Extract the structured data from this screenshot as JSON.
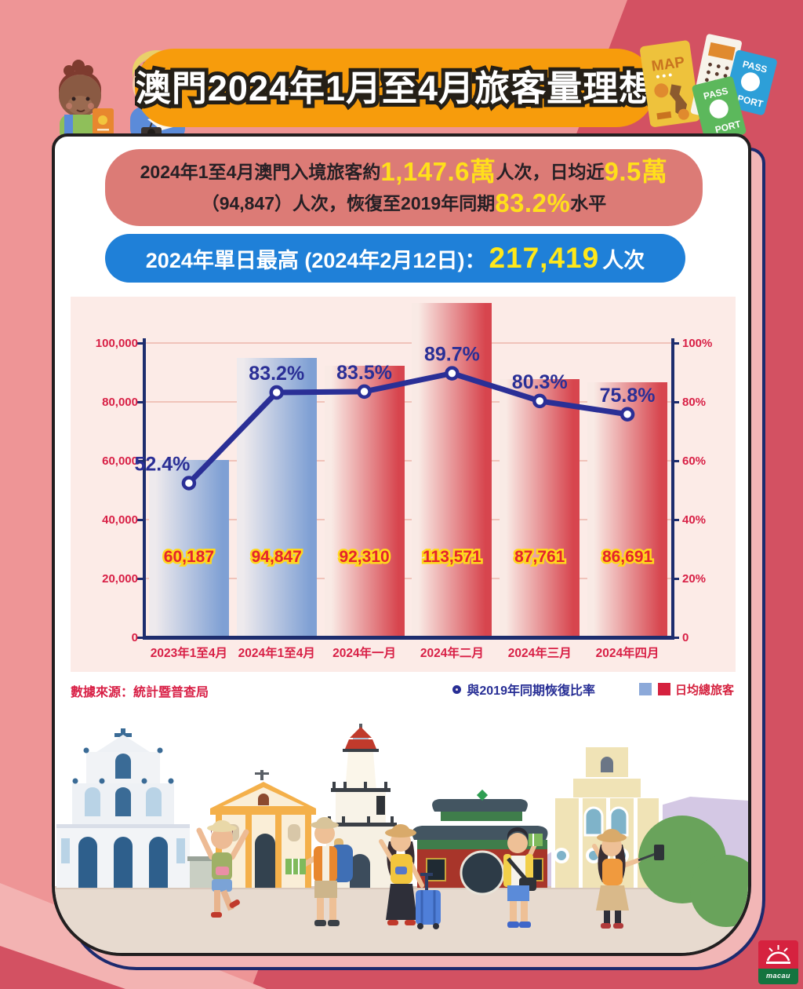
{
  "title": "澳門2024年1月至4月旅客量理想",
  "summary": {
    "line1": [
      {
        "t": "2024年1至4月澳門入境旅客約",
        "hl": false
      },
      {
        "t": "1,147.6萬",
        "hl": true
      },
      {
        "t": "人次，日均近",
        "hl": false
      },
      {
        "t": "9.5萬",
        "hl": true
      }
    ],
    "line2": [
      {
        "t": "（94,847）人次，恢復至2019年同期",
        "hl": false
      },
      {
        "t": "83.2%",
        "hl": true
      },
      {
        "t": "水平",
        "hl": false
      }
    ]
  },
  "highlight_pill": {
    "prefix": "2024年單日最高 (2024年2月12日)：",
    "number": "217,419",
    "suffix": "人次"
  },
  "chart_data": {
    "type": "bar",
    "title": "",
    "categories": [
      "2023年1至4月",
      "2024年1至4月",
      "2024年一月",
      "2024年二月",
      "2024年三月",
      "2024年四月"
    ],
    "series": [
      {
        "name": "日均總旅客",
        "kind": "bar",
        "values": [
          60187,
          94847,
          92310,
          113571,
          87761,
          86691
        ],
        "value_labels": [
          "60,187",
          "94,847",
          "92,310",
          "113,571",
          "87,761",
          "86,691"
        ],
        "bar_palette": [
          "blue",
          "blue",
          "red",
          "red",
          "red",
          "red"
        ]
      },
      {
        "name": "與2019年同期恢復比率",
        "kind": "line",
        "axis": "right",
        "values_percent": [
          52.4,
          83.2,
          83.5,
          89.7,
          80.3,
          75.8
        ],
        "point_labels": [
          "52.4%",
          "83.2%",
          "83.5%",
          "89.7%",
          "80.3%",
          "75.8%"
        ]
      }
    ],
    "left_axis": {
      "max": 100000,
      "ticks": [
        "100,000",
        "80,000",
        "60,000",
        "40,000",
        "20,000",
        "0"
      ]
    },
    "right_axis": {
      "max": 100,
      "ticks": [
        "100%",
        "80%",
        "60%",
        "40%",
        "20%",
        "0"
      ]
    },
    "grid": true,
    "legend_position": "bottom"
  },
  "legend": {
    "source": "數據來源：統計暨普查局",
    "line_series": "與2019年同期恢復比率",
    "bar_series": "日均總旅客"
  },
  "decor": {
    "map_label": "MAP",
    "pass": "PASS",
    "port": "PORT",
    "logo_text": "macau"
  },
  "colors": {
    "accent_orange": "#f79c0c",
    "pill_blue": "#1f80d8",
    "highlight_yellow": "#ffdf1b",
    "crimson": "#d81f45",
    "bar_red": "#d7454e",
    "bar_red_light": "#f9eae5",
    "bar_blue": "#7fa0d4",
    "bar_blue_light": "#eeeaed",
    "bar_value_red": "#e4232e",
    "bar_value_outline": "#ffd81d",
    "line_navy": "#2a2f96",
    "axis_navy": "#1d2d6e",
    "grid_pink": "#f0c3ba",
    "panel_pink": "#fcebe7",
    "summary_bg": "#dc7b76",
    "legend_blue": "#8ca9d9",
    "legend_red": "#d5213e"
  }
}
